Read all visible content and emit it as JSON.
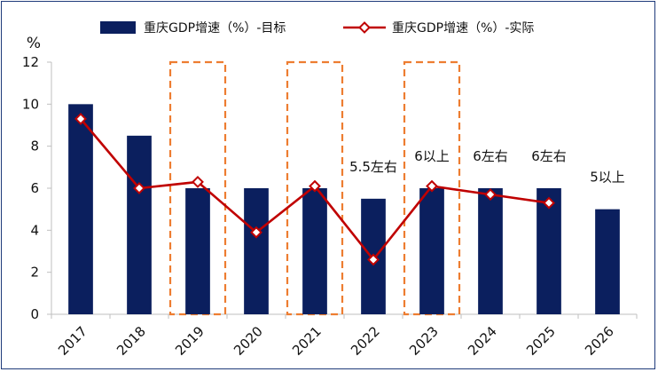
{
  "chart_data": {
    "type": "bar",
    "title": "",
    "ylabel": "%",
    "xlabel": "",
    "ylim": [
      0,
      12
    ],
    "yticks": [
      0,
      2,
      4,
      6,
      8,
      10,
      12
    ],
    "categories": [
      "2017",
      "2018",
      "2019",
      "2020",
      "2021",
      "2022",
      "2023",
      "2024",
      "2025",
      "2026"
    ],
    "series": [
      {
        "name": "重庆GDP增速（%）-目标",
        "kind": "bar",
        "color": "#0b1f5e",
        "values": [
          10,
          8.5,
          6,
          6,
          6,
          5.5,
          6,
          6,
          6,
          5
        ]
      },
      {
        "name": "重庆GDP增速（%）-实际",
        "kind": "line",
        "color": "#c00000",
        "values": [
          9.3,
          6.0,
          6.3,
          3.9,
          6.1,
          2.6,
          6.1,
          5.7,
          5.3,
          null
        ]
      }
    ],
    "annotations": [
      {
        "category": "2022",
        "text": "5.5左右"
      },
      {
        "category": "2023",
        "text": "6以上"
      },
      {
        "category": "2024",
        "text": "6左右"
      },
      {
        "category": "2025",
        "text": "6左右"
      },
      {
        "category": "2026",
        "text": "5以上"
      }
    ],
    "highlighted_categories": [
      "2019",
      "2021",
      "2023"
    ],
    "highlight_color": "#ed7d31",
    "legend": "top"
  }
}
